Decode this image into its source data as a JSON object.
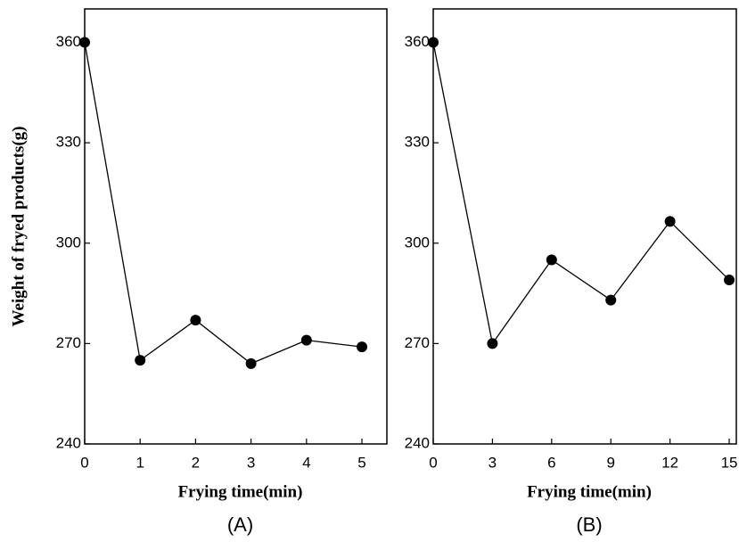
{
  "chart_data": [
    {
      "type": "line",
      "y_label": "Weight of fryed products(g)",
      "x_label": "Frying time(min)",
      "panel_label": "(A)",
      "x": [
        0,
        1,
        2,
        3,
        4,
        5
      ],
      "series": [
        {
          "color": "#000000",
          "values": [
            360,
            265,
            277,
            264,
            271,
            269
          ]
        }
      ],
      "xlim": [
        0,
        5.45
      ],
      "xticks": [
        0,
        1,
        2,
        3,
        4,
        5
      ],
      "ylim": [
        240,
        370
      ],
      "yticks": [
        240,
        270,
        300,
        330,
        360
      ]
    },
    {
      "type": "line",
      "x_label": "Frying time(min)",
      "panel_label": "(B)",
      "x": [
        0,
        3,
        6,
        9,
        12,
        15
      ],
      "series": [
        {
          "color": "#000000",
          "values": [
            360,
            270,
            295,
            283,
            306.5,
            289
          ]
        }
      ],
      "xlim": [
        0,
        15.36
      ],
      "xticks": [
        0,
        3,
        6,
        9,
        12,
        15
      ],
      "ylim": [
        240,
        370
      ],
      "yticks": [
        240,
        270,
        300,
        330,
        360
      ]
    }
  ]
}
